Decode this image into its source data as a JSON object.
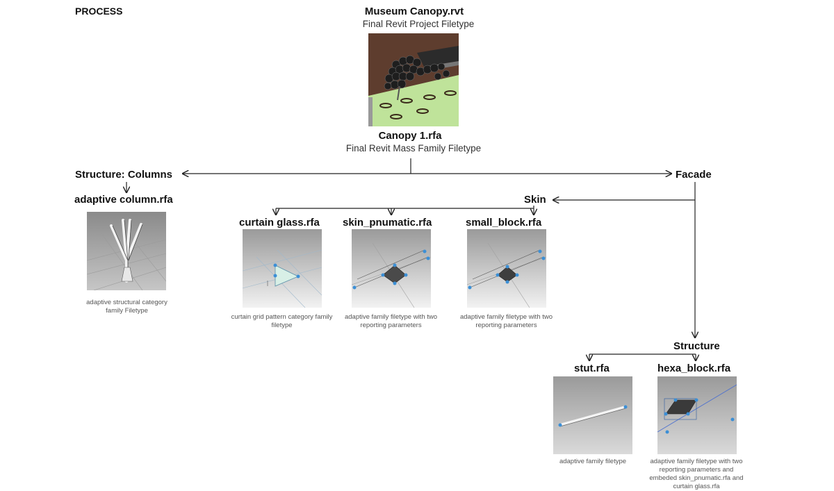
{
  "header": {
    "label": "PROCESS"
  },
  "project": {
    "title": "Museum Canopy.rvt",
    "subtitle": "Final Revit Project Filetype"
  },
  "mass": {
    "title": "Canopy 1.rfa",
    "subtitle": "Final Revit Mass Family Filetype"
  },
  "branches": {
    "columns": "Structure: Columns",
    "facade": "Facade",
    "skin": "Skin",
    "structure": "Structure"
  },
  "families": {
    "adaptive_column": {
      "title": "adaptive column.rfa",
      "caption": "adaptive structural category family Filetype"
    },
    "curtain_glass": {
      "title": "curtain glass.rfa",
      "caption": "curtain grid pattern category family filetype"
    },
    "skin_pnumatic": {
      "title": "skin_pnumatic.rfa",
      "caption": "adaptive family filetype with two reporting parameters"
    },
    "small_block": {
      "title": "small_block.rfa",
      "caption": "adaptive family filetype with two reporting parameters"
    },
    "stut": {
      "title": "stut.rfa",
      "caption": "adaptive family filetype"
    },
    "hexa_block": {
      "title": "hexa_block.rfa",
      "caption": "adaptive family filetype with two reporting parameters and embeded skin_pnumatic.rfa and curtain glass.rfa"
    }
  },
  "colors": {
    "line": "#222222",
    "thumb_bg": "#b8b8b8",
    "grip": "#3b8fd6"
  }
}
